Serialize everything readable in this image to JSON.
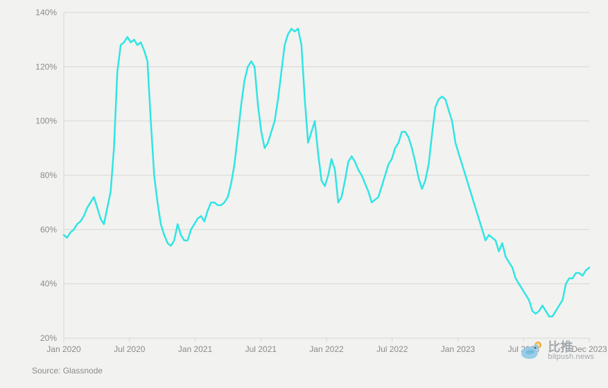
{
  "chart": {
    "type": "line",
    "background_color": "#f2f2f0",
    "plot_background_color": "#f2f2f0",
    "axis_line_color": "#d7d7d5",
    "grid_line_color": "#d7d7d5",
    "tick_label_color": "#8a8a88",
    "tick_fontsize": 12,
    "line_color": "#2fe5e3",
    "line_width": 2.5,
    "y_axis": {
      "min": 20,
      "max": 140,
      "step": 20,
      "suffix": "%",
      "ticks": [
        20,
        40,
        60,
        80,
        100,
        120,
        140
      ]
    },
    "x_axis": {
      "ticks": [
        "Jan 2020",
        "Jul 2020",
        "Jan 2021",
        "Jul 2021",
        "Jan 2022",
        "Jul 2022",
        "Jan 2023",
        "Jul 2023",
        "Dec 2023"
      ]
    },
    "data": [
      58,
      57,
      59,
      60,
      62,
      63,
      65,
      68,
      70,
      72,
      68,
      64,
      62,
      68,
      74,
      90,
      118,
      128,
      129,
      131,
      129,
      130,
      128,
      129,
      126,
      122,
      100,
      80,
      70,
      62,
      58,
      55,
      54,
      56,
      62,
      58,
      56,
      56,
      60,
      62,
      64,
      65,
      63,
      67,
      70,
      70,
      69,
      69,
      70,
      72,
      77,
      84,
      95,
      106,
      115,
      120,
      122,
      120,
      106,
      96,
      90,
      92,
      96,
      100,
      108,
      118,
      128,
      132,
      134,
      133,
      134,
      128,
      108,
      92,
      96,
      100,
      88,
      78,
      76,
      80,
      86,
      82,
      70,
      72,
      78,
      85,
      87,
      85,
      82,
      80,
      77,
      74,
      70,
      71,
      72,
      76,
      80,
      84,
      86,
      90,
      92,
      96,
      96,
      94,
      90,
      85,
      79,
      75,
      78,
      84,
      95,
      105,
      108,
      109,
      108,
      104,
      100,
      92,
      88,
      84,
      80,
      76,
      72,
      68,
      64,
      60,
      56,
      58,
      57,
      56,
      52,
      55,
      50,
      48,
      46,
      42,
      40,
      38,
      36,
      34,
      30,
      29,
      30,
      32,
      30,
      28,
      28,
      30,
      32,
      34,
      40,
      42,
      42,
      44,
      44,
      43,
      45,
      46
    ]
  },
  "source": "Source: Glassnode",
  "watermark": {
    "cn": "比推",
    "en": "bitpush.news",
    "bird_body_color": "#8fc9e8",
    "bird_wing_color": "#6bb7de",
    "coin_color": "#f5a623"
  }
}
